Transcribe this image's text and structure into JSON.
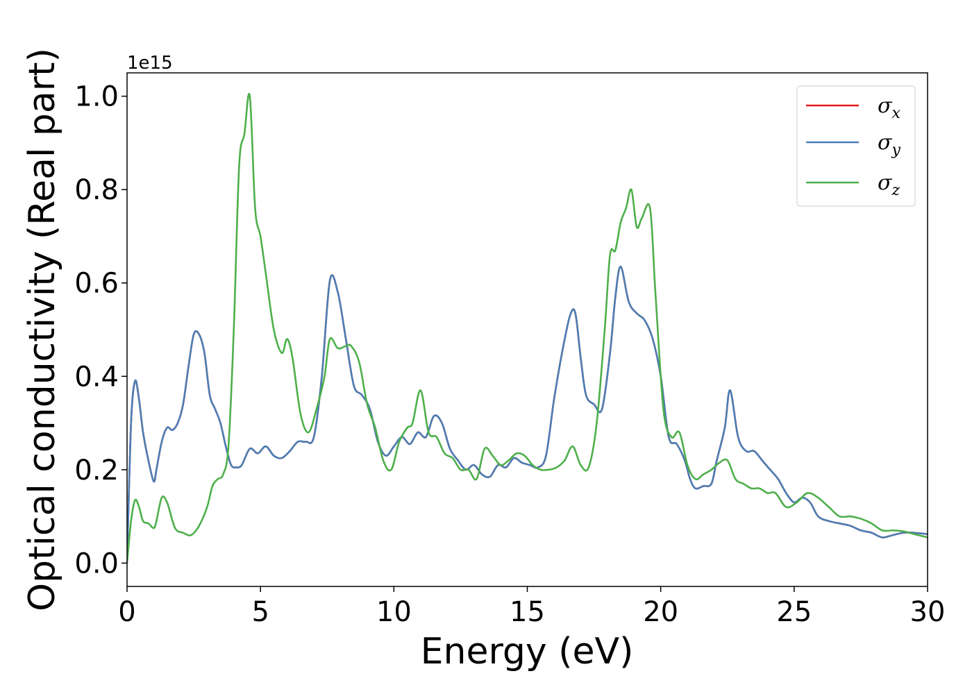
{
  "chart_data": {
    "type": "line",
    "xlabel": "Energy (eV)",
    "ylabel": "Optical conductivity (Real part)",
    "y_offset_text": "1e15",
    "xlim": [
      0,
      30
    ],
    "ylim": [
      -0.05,
      1.05
    ],
    "x_ticks": [
      0,
      5,
      10,
      15,
      20,
      25,
      30
    ],
    "x_tick_labels": [
      "0",
      "5",
      "10",
      "15",
      "20",
      "25",
      "30"
    ],
    "y_ticks": [
      0.0,
      0.2,
      0.4,
      0.6,
      0.8,
      1.0
    ],
    "y_tick_labels": [
      "0.0",
      "0.2",
      "0.4",
      "0.6",
      "0.8",
      "1.0"
    ],
    "grid": false,
    "legend_position": "top-right",
    "series": [
      {
        "name": "σ",
        "subscript": "x",
        "color": "#e41a1c",
        "x": [
          0,
          0.15,
          0.3,
          0.45,
          0.6,
          0.8,
          1.0,
          1.1,
          1.3,
          1.5,
          1.7,
          1.9,
          2.1,
          2.3,
          2.5,
          2.7,
          2.9,
          3.1,
          3.3,
          3.5,
          3.7,
          3.9,
          4.1,
          4.3,
          4.6,
          4.9,
          5.2,
          5.5,
          5.8,
          6.1,
          6.4,
          6.7,
          7.0,
          7.3,
          7.6,
          7.9,
          8.2,
          8.5,
          8.8,
          9.1,
          9.4,
          9.7,
          10.0,
          10.3,
          10.6,
          10.9,
          11.2,
          11.5,
          11.8,
          12.1,
          12.4,
          12.7,
          13.0,
          13.3,
          13.6,
          13.9,
          14.2,
          14.5,
          14.8,
          15.1,
          15.4,
          15.7,
          16.0,
          16.3,
          16.6,
          16.8,
          17.0,
          17.2,
          17.5,
          17.8,
          18.1,
          18.3,
          18.5,
          18.8,
          19.1,
          19.4,
          19.7,
          20.0,
          20.3,
          20.6,
          20.9,
          21.1,
          21.3,
          21.6,
          21.9,
          22.1,
          22.4,
          22.6,
          22.9,
          23.2,
          23.5,
          23.8,
          24.1,
          24.4,
          24.7,
          25.0,
          25.3,
          25.6,
          25.9,
          26.3,
          26.7,
          27.1,
          27.5,
          27.9,
          28.3,
          28.7,
          29.1,
          29.5,
          30.0
        ],
        "values": [
          0.0,
          0.3,
          0.39,
          0.35,
          0.28,
          0.22,
          0.175,
          0.2,
          0.26,
          0.29,
          0.285,
          0.3,
          0.34,
          0.42,
          0.49,
          0.49,
          0.45,
          0.36,
          0.33,
          0.3,
          0.25,
          0.21,
          0.205,
          0.21,
          0.245,
          0.235,
          0.25,
          0.23,
          0.225,
          0.24,
          0.26,
          0.26,
          0.27,
          0.4,
          0.605,
          0.58,
          0.48,
          0.38,
          0.36,
          0.33,
          0.26,
          0.23,
          0.25,
          0.27,
          0.255,
          0.28,
          0.27,
          0.315,
          0.3,
          0.245,
          0.22,
          0.2,
          0.21,
          0.19,
          0.185,
          0.21,
          0.205,
          0.225,
          0.215,
          0.21,
          0.205,
          0.23,
          0.35,
          0.45,
          0.53,
          0.535,
          0.44,
          0.36,
          0.34,
          0.33,
          0.45,
          0.57,
          0.635,
          0.56,
          0.535,
          0.52,
          0.48,
          0.4,
          0.27,
          0.255,
          0.22,
          0.18,
          0.16,
          0.165,
          0.17,
          0.22,
          0.29,
          0.37,
          0.27,
          0.24,
          0.24,
          0.22,
          0.2,
          0.18,
          0.15,
          0.13,
          0.14,
          0.13,
          0.1,
          0.09,
          0.085,
          0.08,
          0.07,
          0.065,
          0.055,
          0.06,
          0.065,
          0.065,
          0.062
        ]
      },
      {
        "name": "σ",
        "subscript": "y",
        "color": "#4a7fb5",
        "x": [
          0,
          0.15,
          0.3,
          0.45,
          0.6,
          0.8,
          1.0,
          1.1,
          1.3,
          1.5,
          1.7,
          1.9,
          2.1,
          2.3,
          2.5,
          2.7,
          2.9,
          3.1,
          3.3,
          3.5,
          3.7,
          3.9,
          4.1,
          4.3,
          4.6,
          4.9,
          5.2,
          5.5,
          5.8,
          6.1,
          6.4,
          6.7,
          7.0,
          7.3,
          7.6,
          7.9,
          8.2,
          8.5,
          8.8,
          9.1,
          9.4,
          9.7,
          10.0,
          10.3,
          10.6,
          10.9,
          11.2,
          11.5,
          11.8,
          12.1,
          12.4,
          12.7,
          13.0,
          13.3,
          13.6,
          13.9,
          14.2,
          14.5,
          14.8,
          15.1,
          15.4,
          15.7,
          16.0,
          16.3,
          16.6,
          16.8,
          17.0,
          17.2,
          17.5,
          17.8,
          18.1,
          18.3,
          18.5,
          18.8,
          19.1,
          19.4,
          19.7,
          20.0,
          20.3,
          20.6,
          20.9,
          21.1,
          21.3,
          21.6,
          21.9,
          22.1,
          22.4,
          22.6,
          22.9,
          23.2,
          23.5,
          23.8,
          24.1,
          24.4,
          24.7,
          25.0,
          25.3,
          25.6,
          25.9,
          26.3,
          26.7,
          27.1,
          27.5,
          27.9,
          28.3,
          28.7,
          29.1,
          29.5,
          30.0
        ],
        "values": [
          0.0,
          0.3,
          0.39,
          0.35,
          0.28,
          0.22,
          0.175,
          0.2,
          0.26,
          0.29,
          0.285,
          0.3,
          0.34,
          0.42,
          0.49,
          0.49,
          0.45,
          0.36,
          0.33,
          0.3,
          0.25,
          0.21,
          0.205,
          0.21,
          0.245,
          0.235,
          0.25,
          0.23,
          0.225,
          0.24,
          0.26,
          0.26,
          0.27,
          0.4,
          0.605,
          0.58,
          0.48,
          0.38,
          0.36,
          0.33,
          0.26,
          0.23,
          0.25,
          0.27,
          0.255,
          0.28,
          0.27,
          0.315,
          0.3,
          0.245,
          0.22,
          0.2,
          0.21,
          0.19,
          0.185,
          0.21,
          0.205,
          0.225,
          0.215,
          0.21,
          0.205,
          0.23,
          0.35,
          0.45,
          0.53,
          0.535,
          0.44,
          0.36,
          0.34,
          0.33,
          0.45,
          0.57,
          0.635,
          0.56,
          0.535,
          0.52,
          0.48,
          0.4,
          0.27,
          0.255,
          0.22,
          0.18,
          0.16,
          0.165,
          0.17,
          0.22,
          0.29,
          0.37,
          0.27,
          0.24,
          0.24,
          0.22,
          0.2,
          0.18,
          0.15,
          0.13,
          0.14,
          0.13,
          0.1,
          0.09,
          0.085,
          0.08,
          0.07,
          0.065,
          0.055,
          0.06,
          0.065,
          0.065,
          0.062
        ]
      },
      {
        "name": "σ",
        "subscript": "z",
        "color": "#4daf4a",
        "x": [
          0,
          0.15,
          0.3,
          0.45,
          0.6,
          0.8,
          1.0,
          1.1,
          1.3,
          1.5,
          1.8,
          2.1,
          2.4,
          2.7,
          3.0,
          3.2,
          3.4,
          3.6,
          3.8,
          4.0,
          4.2,
          4.4,
          4.6,
          4.8,
          5.0,
          5.2,
          5.5,
          5.8,
          6.0,
          6.2,
          6.5,
          6.8,
          7.1,
          7.4,
          7.6,
          7.9,
          8.2,
          8.4,
          8.7,
          9.0,
          9.3,
          9.6,
          9.9,
          10.2,
          10.5,
          10.7,
          11.0,
          11.3,
          11.6,
          11.9,
          12.2,
          12.5,
          12.8,
          13.1,
          13.4,
          13.7,
          14.0,
          14.3,
          14.6,
          14.9,
          15.2,
          15.5,
          15.8,
          16.1,
          16.4,
          16.7,
          17.0,
          17.3,
          17.6,
          17.9,
          18.1,
          18.3,
          18.5,
          18.7,
          18.9,
          19.1,
          19.3,
          19.6,
          19.8,
          20.1,
          20.4,
          20.7,
          21.0,
          21.3,
          21.6,
          21.9,
          22.2,
          22.5,
          22.8,
          23.1,
          23.4,
          23.7,
          24.0,
          24.3,
          24.7,
          25.1,
          25.5,
          25.9,
          26.3,
          26.7,
          27.1,
          27.5,
          27.9,
          28.3,
          28.7,
          29.1,
          29.5,
          30.0
        ],
        "values": [
          0.0,
          0.09,
          0.135,
          0.12,
          0.09,
          0.085,
          0.075,
          0.09,
          0.14,
          0.13,
          0.075,
          0.065,
          0.06,
          0.08,
          0.12,
          0.165,
          0.18,
          0.19,
          0.25,
          0.5,
          0.85,
          0.92,
          1.0,
          0.76,
          0.7,
          0.62,
          0.5,
          0.45,
          0.48,
          0.44,
          0.32,
          0.28,
          0.33,
          0.4,
          0.48,
          0.46,
          0.465,
          0.465,
          0.43,
          0.34,
          0.29,
          0.22,
          0.2,
          0.26,
          0.29,
          0.3,
          0.37,
          0.28,
          0.27,
          0.235,
          0.225,
          0.2,
          0.2,
          0.18,
          0.245,
          0.23,
          0.21,
          0.22,
          0.235,
          0.23,
          0.21,
          0.2,
          0.2,
          0.205,
          0.22,
          0.25,
          0.21,
          0.205,
          0.3,
          0.5,
          0.66,
          0.67,
          0.73,
          0.76,
          0.8,
          0.72,
          0.74,
          0.76,
          0.58,
          0.33,
          0.27,
          0.28,
          0.21,
          0.18,
          0.19,
          0.2,
          0.215,
          0.22,
          0.18,
          0.17,
          0.16,
          0.16,
          0.15,
          0.15,
          0.12,
          0.13,
          0.15,
          0.14,
          0.12,
          0.1,
          0.1,
          0.095,
          0.085,
          0.07,
          0.07,
          0.068,
          0.062,
          0.055
        ]
      }
    ]
  }
}
